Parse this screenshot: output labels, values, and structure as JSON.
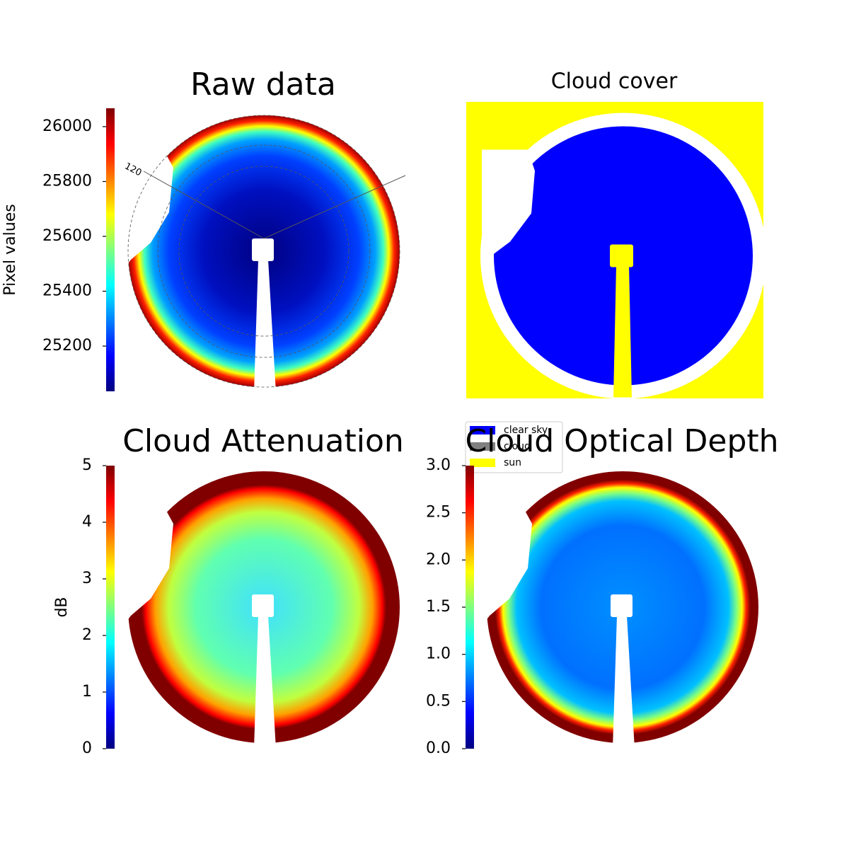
{
  "chart_data": [
    {
      "type": "heatmap",
      "title": "Raw data",
      "ylabel": "Pixel values",
      "ylim": [
        25035,
        26067
      ],
      "yticks": [
        25200,
        25400,
        25600,
        25800,
        26000
      ],
      "annotations": [
        "120"
      ],
      "colormap": "raw"
    },
    {
      "type": "classes",
      "title": "Cloud cover",
      "legend": [
        {
          "name": "clear sky",
          "color": "#0000ff"
        },
        {
          "name": "cloud",
          "color": "#808080"
        },
        {
          "name": "sun",
          "color": "#ffff00"
        }
      ]
    },
    {
      "type": "heatmap",
      "title": "Cloud Attenuation",
      "ylabel": "dB",
      "ylim": [
        0,
        5
      ],
      "yticks": [
        0,
        1,
        2,
        3,
        4,
        5
      ],
      "colormap": "att"
    },
    {
      "type": "heatmap",
      "title": "Cloud Optical Depth",
      "ylim": [
        0,
        3
      ],
      "yticks": [
        {
          "value": 0,
          "label": "0.0"
        },
        {
          "value": 0.5,
          "label": "0.5"
        },
        {
          "value": 1,
          "label": "1.0"
        },
        {
          "value": 1.5,
          "label": "1.5"
        },
        {
          "value": 2,
          "label": "2.0"
        },
        {
          "value": 2.5,
          "label": "2.5"
        },
        {
          "value": 3,
          "label": "3.0"
        }
      ],
      "colormap": "cod"
    }
  ]
}
